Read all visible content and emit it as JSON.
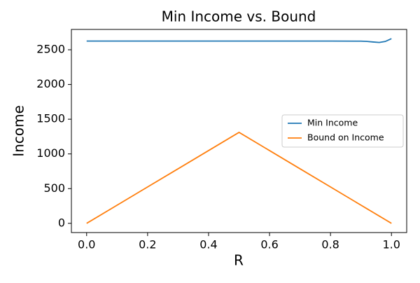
{
  "chart_data": {
    "type": "line",
    "title": "Min Income vs. Bound",
    "xlabel": "R",
    "ylabel": "Income",
    "x": [
      0,
      0.1,
      0.2,
      0.3,
      0.4,
      0.5,
      0.6,
      0.7,
      0.8,
      0.9,
      0.92,
      0.94,
      0.96,
      0.98,
      1.0
    ],
    "series": [
      {
        "name": "Min Income",
        "color": "#1f77b4",
        "values": [
          2625,
          2625,
          2625,
          2625,
          2625,
          2625,
          2625,
          2625,
          2625,
          2624,
          2620,
          2612,
          2605,
          2620,
          2660
        ]
      },
      {
        "name": "Bound on Income",
        "color": "#ff7f0e",
        "values": [
          0,
          262,
          524,
          786,
          1048,
          1310,
          1048,
          786,
          524,
          262,
          209.6,
          157.2,
          104.8,
          52.4,
          0
        ]
      }
    ],
    "xlim": [
      -0.05,
      1.05
    ],
    "ylim": [
      -133,
      2793
    ],
    "xticks": [
      {
        "value": 0,
        "label": "0.0"
      },
      0.2,
      0.4,
      0.6,
      0.8,
      {
        "value": 1,
        "label": "1.0"
      }
    ],
    "yticks": [
      0,
      500,
      1000,
      1500,
      2000,
      2500
    ],
    "grid": false,
    "legend": "center right"
  }
}
